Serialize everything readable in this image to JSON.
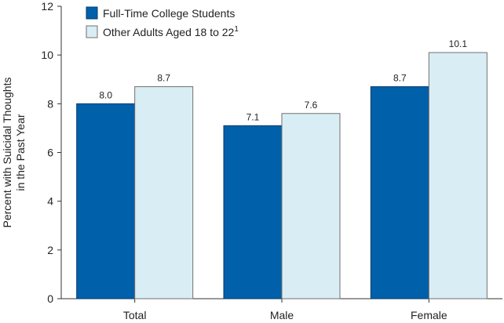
{
  "chart_data": {
    "type": "bar",
    "categories": [
      "Total",
      "Male",
      "Female"
    ],
    "series": [
      {
        "name": "Full-Time College Students",
        "values": [
          8.0,
          7.1,
          8.7
        ],
        "labels": [
          "8.0",
          "7.1",
          "8.7"
        ],
        "color": "#0060aa",
        "stroke": "#003a6e"
      },
      {
        "name": "Other Adults Aged 18 to 22",
        "name_superscript": "1",
        "values": [
          8.7,
          7.6,
          10.1
        ],
        "labels": [
          "8.7",
          "7.6",
          "10.1"
        ],
        "color": "#d8eef4",
        "stroke": "#707070"
      }
    ],
    "ylabel_lines": [
      "Percent with Suicidal Thoughts",
      "in the Past Year"
    ],
    "ylim": [
      0,
      12
    ],
    "yticks": [
      0,
      2,
      4,
      6,
      8,
      10,
      12
    ],
    "grid": false,
    "legend_position": "top-left"
  }
}
